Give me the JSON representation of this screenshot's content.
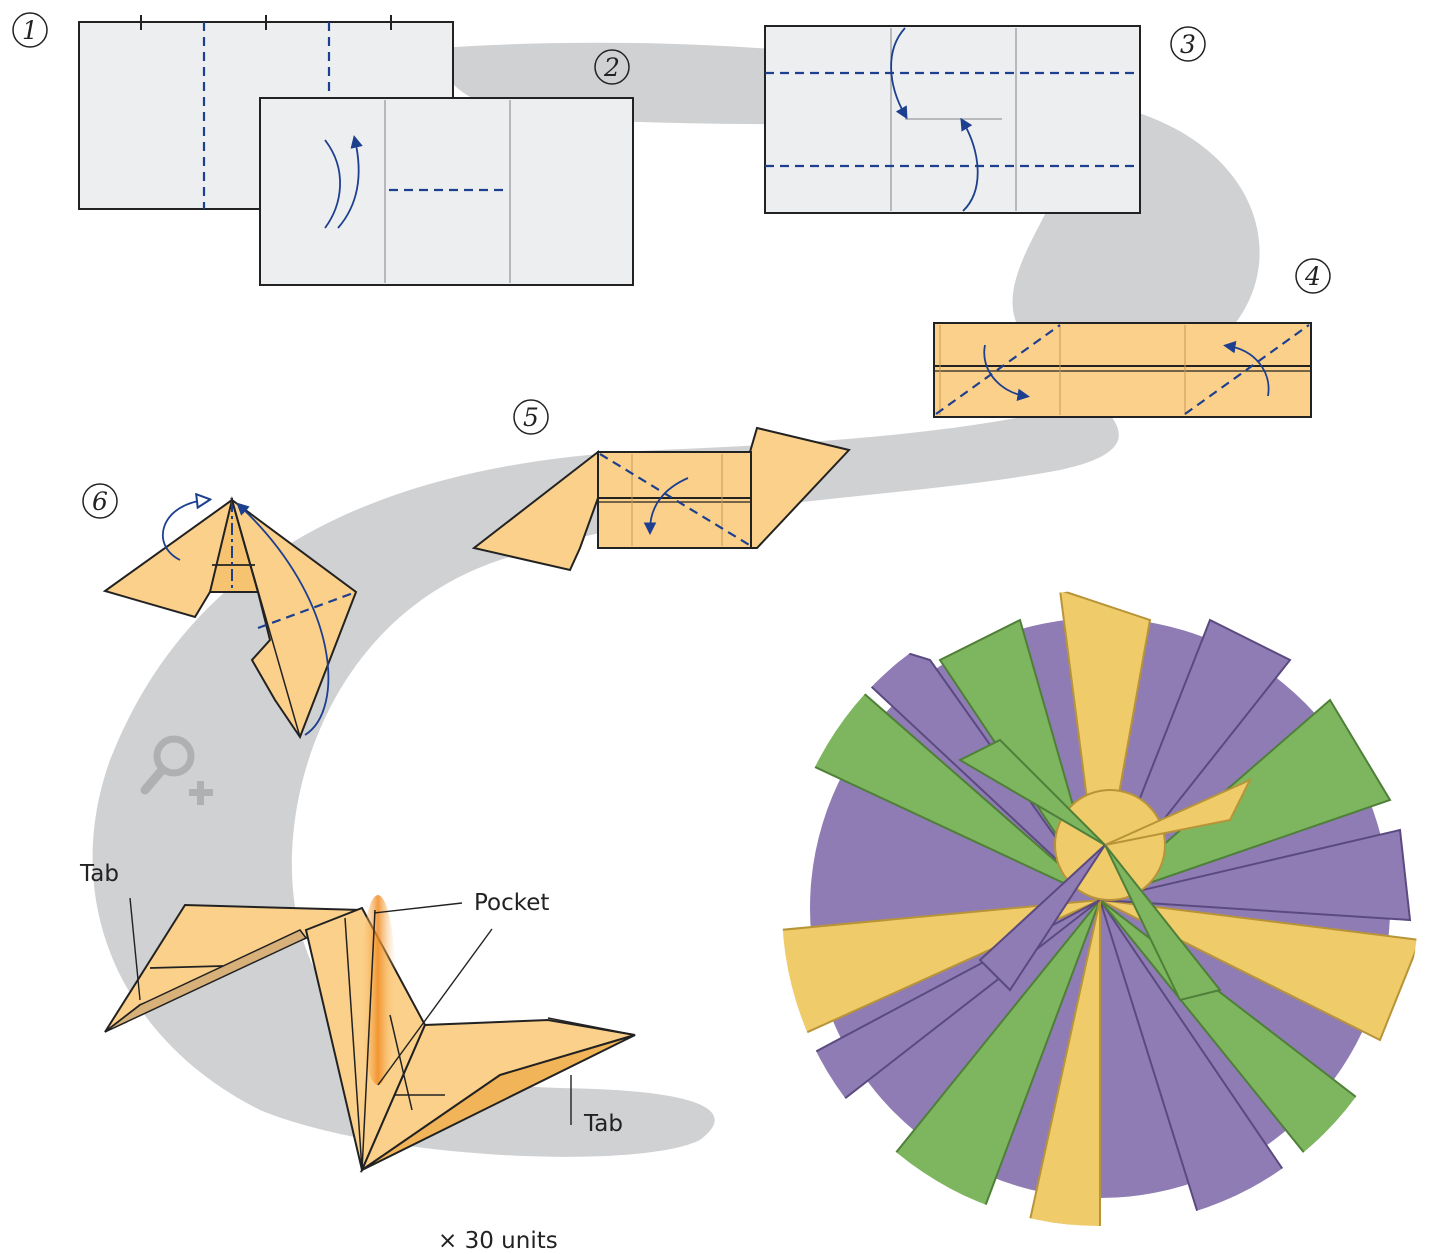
{
  "steps": [
    {
      "number": "1"
    },
    {
      "number": "2"
    },
    {
      "number": "3"
    },
    {
      "number": "4"
    },
    {
      "number": "5"
    },
    {
      "number": "6"
    }
  ],
  "labels": {
    "tab_left": "Tab",
    "pocket": "Pocket",
    "tab_right": "Tab",
    "units_note": "× 30 units"
  },
  "icons": {
    "zoom": "zoom-in-icon"
  },
  "colors": {
    "paper_white": "#eceef0",
    "paper_orange": "#fbd08a",
    "paper_orange_dark": "#f2b458",
    "crease_blue": "#1d3f8f",
    "path_gray": "#cfd0d2",
    "outline": "#222222",
    "ball_green": "#7db65f",
    "ball_purple": "#8f7cb4",
    "ball_yellow": "#efcb6a"
  }
}
